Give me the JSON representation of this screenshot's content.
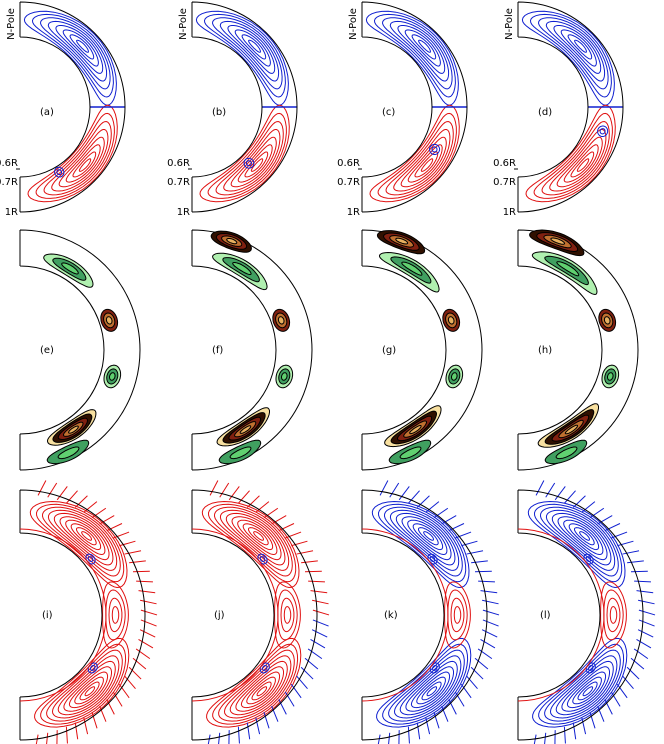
{
  "panels": [
    {
      "label": "(a)",
      "axis": {
        "pole": "N-Pole",
        "inner": "0.6R",
        "base": "0.7R",
        "outer": "1R"
      }
    },
    {
      "label": "(b)",
      "axis": {
        "pole": "N-Pole",
        "inner": "0.6R",
        "base": "0.7R",
        "outer": "1R"
      }
    },
    {
      "label": "(c)",
      "axis": {
        "pole": "N-Pole",
        "inner": "0.6R",
        "base": "0.7R",
        "outer": "1R"
      }
    },
    {
      "label": "(d)",
      "axis": {
        "pole": "N-Pole",
        "inner": "0.6R",
        "base": "0.7R",
        "outer": "1R"
      }
    },
    {
      "label": "(e)"
    },
    {
      "label": "(f)"
    },
    {
      "label": "(g)"
    },
    {
      "label": "(h)"
    },
    {
      "label": "(i)"
    },
    {
      "label": "(j)"
    },
    {
      "label": "(k)"
    },
    {
      "label": "(l)"
    }
  ]
}
